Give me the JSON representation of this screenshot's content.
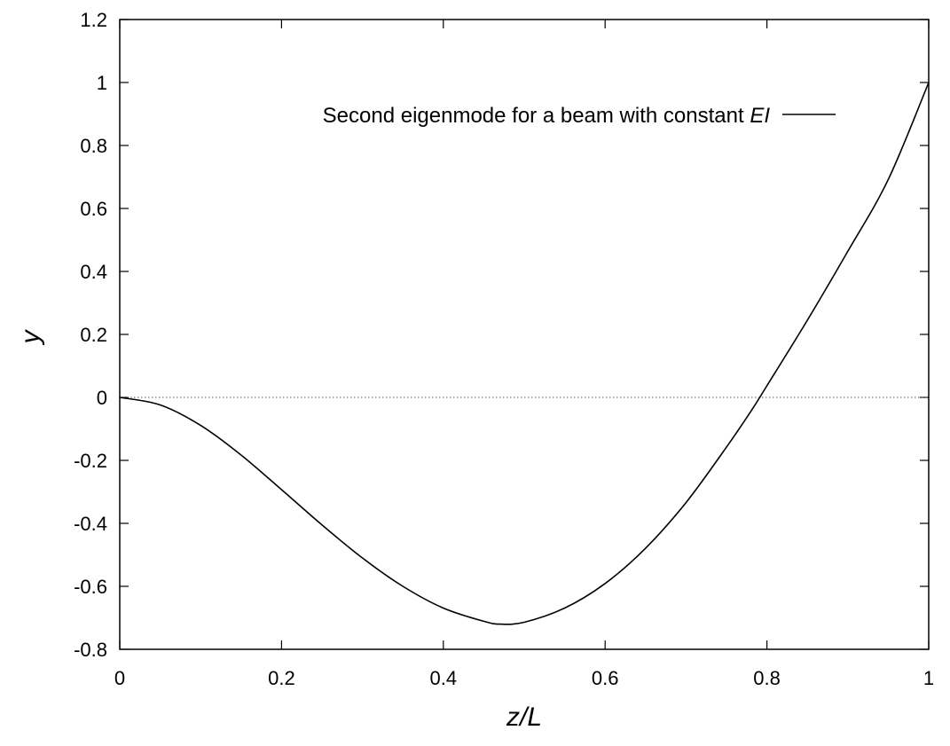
{
  "chart_data": {
    "type": "line",
    "title": "",
    "xlabel": "z/L",
    "ylabel": "y",
    "xlim": [
      0,
      1
    ],
    "ylim": [
      -0.8,
      1.2
    ],
    "x_ticks": [
      0,
      0.2,
      0.4,
      0.6,
      0.8,
      1
    ],
    "x_tick_labels": [
      "0",
      "0.2",
      "0.4",
      "0.6",
      "0.8",
      "1"
    ],
    "y_ticks": [
      -0.8,
      -0.6,
      -0.4,
      -0.2,
      0,
      0.2,
      0.4,
      0.6,
      0.8,
      1,
      1.2
    ],
    "y_tick_labels": [
      "-0.8",
      "-0.6",
      "-0.4",
      "-0.2",
      "0",
      "0.2",
      "0.4",
      "0.6",
      "0.8",
      "1",
      "1.2"
    ],
    "grid": false,
    "zero_line": {
      "y": 0,
      "style": "dotted"
    },
    "legend": {
      "placement": "top-left",
      "entries": [
        {
          "prefix": "Second eigenmode for a beam with constant ",
          "italic": "EI"
        }
      ]
    },
    "series": [
      {
        "name": "Second eigenmode for a beam with constant EI",
        "color": "#000000",
        "x": [
          0.0,
          0.05,
          0.1,
          0.15,
          0.2,
          0.25,
          0.3,
          0.35,
          0.4,
          0.45,
          0.47,
          0.5,
          0.55,
          0.6,
          0.65,
          0.7,
          0.75,
          0.78,
          0.8,
          0.85,
          0.9,
          0.95,
          1.0
        ],
        "y": [
          0.0,
          -0.024,
          -0.089,
          -0.183,
          -0.293,
          -0.405,
          -0.51,
          -0.6,
          -0.669,
          -0.711,
          -0.72,
          -0.714,
          -0.669,
          -0.591,
          -0.479,
          -0.334,
          -0.158,
          -0.045,
          0.037,
          0.245,
          0.464,
          0.692,
          1.0
        ]
      }
    ]
  }
}
